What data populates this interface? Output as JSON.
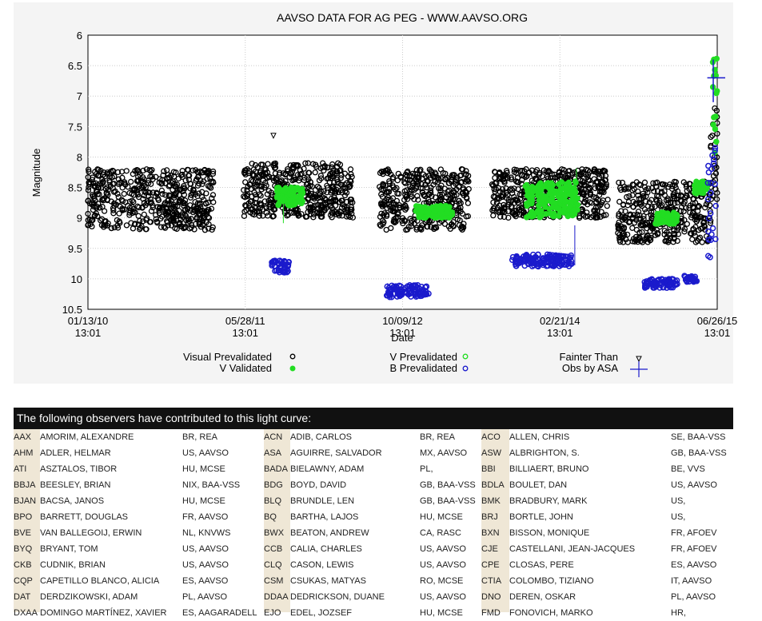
{
  "chart_data": {
    "type": "scatter",
    "title": "AAVSO DATA FOR AG PEG - WWW.AAVSO.ORG",
    "xlabel": "Date",
    "ylabel": "Magnitude",
    "ylim": [
      10.5,
      6
    ],
    "y_inverted": true,
    "yticks": [
      "6",
      "6.5",
      "7",
      "7.5",
      "8",
      "8.5",
      "9",
      "9.5",
      "10",
      "10.5"
    ],
    "xticks": [
      {
        "date": "01/13/10",
        "time": "13:01"
      },
      {
        "date": "05/28/11",
        "time": "13:01"
      },
      {
        "date": "10/09/12",
        "time": "13:01"
      },
      {
        "date": "02/21/14",
        "time": "13:01"
      },
      {
        "date": "06/26/15",
        "time": "13:01"
      }
    ],
    "x_range_days": [
      0,
      1900
    ],
    "grid": true,
    "legend": [
      {
        "label": "Visual Prevalidated",
        "marker": "open-circle",
        "color": "#000000"
      },
      {
        "label": "V Validated",
        "marker": "filled-circle",
        "color": "#22dd22"
      },
      {
        "label": "V Prevalidated",
        "marker": "open-circle",
        "color": "#22dd22"
      },
      {
        "label": "B Prevalidated",
        "marker": "open-circle",
        "color": "#1a1acc"
      },
      {
        "label": "Fainter Than",
        "marker": "triangle",
        "color": "#000000"
      },
      {
        "label": "Obs by ASA",
        "marker": "cross",
        "color": "#1a1acc"
      }
    ],
    "series": [
      {
        "name": "Visual Prevalidated",
        "clusters": [
          {
            "x": [
              0,
              380
            ],
            "y": [
              8.2,
              9.2
            ]
          },
          {
            "x": [
              470,
              800
            ],
            "y": [
              8.1,
              9.0
            ]
          },
          {
            "x": [
              880,
              1150
            ],
            "y": [
              8.2,
              9.2
            ]
          },
          {
            "x": [
              1220,
              1570
            ],
            "y": [
              8.2,
              9.0
            ]
          },
          {
            "x": [
              1600,
              1880
            ],
            "y": [
              8.4,
              9.4
            ]
          },
          {
            "x": [
              1880,
              1900
            ],
            "y": [
              7.2,
              8.8
            ]
          }
        ]
      },
      {
        "name": "V Prevalidated",
        "clusters": [
          {
            "x": [
              570,
              650
            ],
            "y": [
              8.5,
              8.8
            ]
          },
          {
            "x": [
              990,
              1100
            ],
            "y": [
              8.8,
              9.0
            ]
          },
          {
            "x": [
              1320,
              1480
            ],
            "y": [
              8.4,
              9.0
            ]
          },
          {
            "x": [
              1710,
              1780
            ],
            "y": [
              8.9,
              9.1
            ]
          },
          {
            "x": [
              1830,
              1870
            ],
            "y": [
              8.4,
              8.6
            ]
          },
          {
            "x": [
              1885,
              1900
            ],
            "y": [
              6.3,
              8.0
            ]
          }
        ]
      },
      {
        "name": "B Prevalidated",
        "clusters": [
          {
            "x": [
              555,
              610
            ],
            "y": [
              9.7,
              9.9
            ]
          },
          {
            "x": [
              900,
              1030
            ],
            "y": [
              10.1,
              10.3
            ]
          },
          {
            "x": [
              1280,
              1460
            ],
            "y": [
              9.6,
              9.8
            ]
          },
          {
            "x": [
              1680,
              1780
            ],
            "y": [
              10.0,
              10.15
            ]
          },
          {
            "x": [
              1800,
              1840
            ],
            "y": [
              9.95,
              10.05
            ]
          },
          {
            "x": [
              1870,
              1900
            ],
            "y": [
              7.7,
              9.8
            ]
          }
        ]
      },
      {
        "name": "Fainter Than",
        "points": [
          {
            "x": 560,
            "y": 7.65
          },
          {
            "x": 150,
            "y": 8.6
          }
        ]
      }
    ]
  },
  "observers_header": "The following observers have contributed to this light curve:",
  "observers": [
    [
      {
        "code": "AAX",
        "name": "AMORIM, ALEXANDRE",
        "org": "BR, REA"
      },
      {
        "code": "ACN",
        "name": "ADIB, CARLOS",
        "org": "BR, REA"
      },
      {
        "code": "ACO",
        "name": "ALLEN, CHRIS",
        "org": "SE, BAA-VSS"
      }
    ],
    [
      {
        "code": "AHM",
        "name": "ADLER, HELMAR",
        "org": "US, AAVSO"
      },
      {
        "code": "ASA",
        "name": "AGUIRRE, SALVADOR",
        "org": "MX, AAVSO"
      },
      {
        "code": "ASW",
        "name": "ALBRIGHTON, S.",
        "org": "GB, BAA-VSS"
      }
    ],
    [
      {
        "code": "ATI",
        "name": "ASZTALOS, TIBOR",
        "org": "HU, MCSE"
      },
      {
        "code": "BADA",
        "name": "BIELAWNY, ADAM",
        "org": "PL,"
      },
      {
        "code": "BBI",
        "name": "BILLIAERT, BRUNO",
        "org": "BE, VVS"
      }
    ],
    [
      {
        "code": "BBJA",
        "name": "BEESLEY, BRIAN",
        "org": "NIX, BAA-VSS"
      },
      {
        "code": "BDG",
        "name": "BOYD, DAVID",
        "org": "GB, BAA-VSS"
      },
      {
        "code": "BDLA",
        "name": "BOULET, DAN",
        "org": "US, AAVSO"
      }
    ],
    [
      {
        "code": "BJAN",
        "name": "BACSA, JANOS",
        "org": "HU, MCSE"
      },
      {
        "code": "BLQ",
        "name": "BRUNDLE, LEN",
        "org": "GB, BAA-VSS"
      },
      {
        "code": "BMK",
        "name": "BRADBURY, MARK",
        "org": "US,"
      }
    ],
    [
      {
        "code": "BPO",
        "name": "BARRETT, DOUGLAS",
        "org": "FR, AAVSO"
      },
      {
        "code": "BQ",
        "name": "BARTHA, LAJOS",
        "org": "HU, MCSE"
      },
      {
        "code": "BRJ",
        "name": "BORTLE, JOHN",
        "org": "US,"
      }
    ],
    [
      {
        "code": "BVE",
        "name": "VAN BALLEGOIJ, ERWIN",
        "org": "NL, KNVWS"
      },
      {
        "code": "BWX",
        "name": "BEATON, ANDREW",
        "org": "CA, RASC"
      },
      {
        "code": "BXN",
        "name": "BISSON, MONIQUE",
        "org": "FR, AFOEV"
      }
    ],
    [
      {
        "code": "BYQ",
        "name": "BRYANT, TOM",
        "org": "US, AAVSO"
      },
      {
        "code": "CCB",
        "name": "CALIA, CHARLES",
        "org": "US, AAVSO"
      },
      {
        "code": "CJE",
        "name": "CASTELLANI, JEAN-JACQUES",
        "org": "FR, AFOEV"
      }
    ],
    [
      {
        "code": "CKB",
        "name": "CUDNIK, BRIAN",
        "org": "US, AAVSO"
      },
      {
        "code": "CLQ",
        "name": "CASON, LEWIS",
        "org": "US, AAVSO"
      },
      {
        "code": "CPE",
        "name": "CLOSAS, PERE",
        "org": "ES, AAVSO"
      }
    ],
    [
      {
        "code": "CQP",
        "name": "CAPETILLO BLANCO, ALICIA",
        "org": "ES, AAVSO"
      },
      {
        "code": "CSM",
        "name": "CSUKAS, MATYAS",
        "org": "RO, MCSE"
      },
      {
        "code": "CTIA",
        "name": "COLOMBO, TIZIANO",
        "org": "IT, AAVSO"
      }
    ],
    [
      {
        "code": "DAT",
        "name": "DERDZIKOWSKI, ADAM",
        "org": "PL, AAVSO"
      },
      {
        "code": "DDAA",
        "name": "DEDRICKSON, DUANE",
        "org": "US, AAVSO"
      },
      {
        "code": "DNO",
        "name": "DEREN, OSKAR",
        "org": "PL, AAVSO"
      }
    ],
    [
      {
        "code": "DXAA",
        "name": "DOMINGO MARTÍNEZ, XAVIER",
        "org": "ES, AAGARADELL"
      },
      {
        "code": "EJO",
        "name": "EDEL, JOZSEF",
        "org": "HU, MCSE"
      },
      {
        "code": "FMD",
        "name": "FONOVICH, MARKO",
        "org": "HR,"
      }
    ]
  ],
  "colors": {
    "visual": "#000000",
    "v_green": "#22dd22",
    "b_blue": "#1a1acc",
    "header_bg": "#111111",
    "code_bg": "#efe7d6",
    "panel_bg": "#f4f4f4"
  }
}
